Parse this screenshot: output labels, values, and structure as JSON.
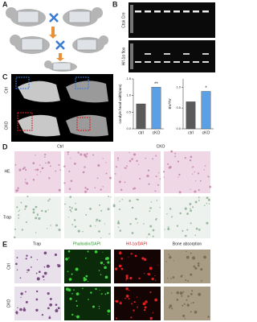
{
  "panels": {
    "a": "A",
    "b": "B",
    "c": "C",
    "d": "D",
    "e": "E"
  },
  "gel": {
    "rows": [
      "Ctsk Cre",
      "Hif-1α flox"
    ]
  },
  "micro_ct": {
    "rows": [
      "Ctrl",
      "CKO"
    ]
  },
  "histology": {
    "columns": [
      "Ctrl",
      "CKO"
    ],
    "rows": [
      "HE",
      "Trap"
    ]
  },
  "staining": {
    "columns": [
      "Trap",
      "Phalloidin/DAPI",
      "Hif-1α/DAPI",
      "Bone absorption"
    ],
    "rows": [
      "Ctrl",
      "CKO"
    ]
  },
  "chart_data": [
    {
      "type": "bar",
      "y_label": "condyle head width(mm)",
      "categories": [
        "ctrl",
        "cKO"
      ],
      "values": [
        0.75,
        1.25
      ],
      "colors": [
        "#5a5a5a",
        "#5aa0e6"
      ],
      "annotation": "**",
      "ylim": [
        0,
        1.5
      ],
      "yticks": [
        {
          "value": 0,
          "label": "0.0"
        },
        {
          "value": 0.5,
          "label": "0.5"
        },
        {
          "value": 1,
          "label": "1.0"
        },
        {
          "value": 1.5,
          "label": "1.5"
        }
      ]
    },
    {
      "type": "bar",
      "y_label": "BV/TV",
      "categories": [
        "ctrl",
        "cKO"
      ],
      "values": [
        0.65,
        0.9
      ],
      "colors": [
        "#5a5a5a",
        "#5aa0e6"
      ],
      "annotation": "*",
      "ylim": [
        0,
        1.2
      ],
      "yticks": [
        {
          "value": 0,
          "label": "0.0"
        },
        {
          "value": 0.5,
          "label": "0.5"
        },
        {
          "value": 1,
          "label": "1.0"
        }
      ]
    }
  ]
}
